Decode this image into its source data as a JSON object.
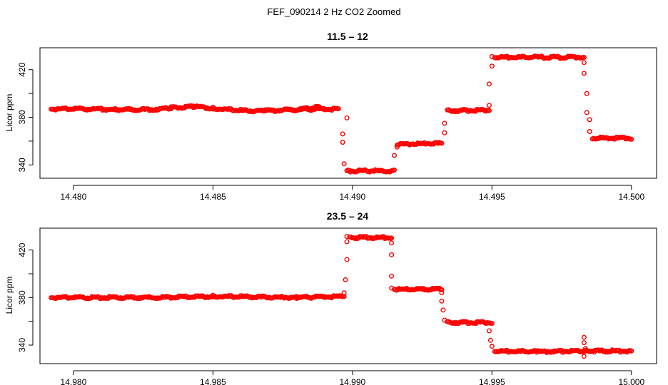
{
  "figure": {
    "title": "FEF_090214  2 Hz CO2 Zoomed"
  },
  "colors": {
    "points": "#ff0000",
    "axes": "#000000",
    "background": "#ffffff"
  },
  "chart_data": [
    {
      "type": "scatter",
      "title": "11.5 – 12",
      "xlabel": "",
      "ylabel": "Licor ppm",
      "xlim": [
        14.4788,
        14.5009
      ],
      "ylim": [
        328.8,
        438.4
      ],
      "x_ticks": [
        14.48,
        14.485,
        14.49,
        14.495,
        14.5
      ],
      "x_tick_labels": [
        "14.480",
        "14.485",
        "14.490",
        "14.495",
        "14.500"
      ],
      "y_ticks": [
        340,
        360,
        380,
        400,
        420
      ],
      "y_tick_labels": [
        "340",
        "",
        "380",
        "",
        "420"
      ],
      "marker": "open-circle",
      "series": [
        {
          "segments": [
            {
              "x": [
                14.4792,
                14.4805,
                14.4815,
                14.4828,
                14.4835,
                14.4843,
                14.485,
                14.4861,
                14.4868,
                14.488,
                14.4895
              ],
              "y": [
                386.5,
                386.5,
                386.0,
                386.0,
                387.5,
                388.5,
                387.0,
                385.0,
                385.0,
                386.0,
                386.5
              ]
            },
            {
              "x": [
                14.488,
                14.4888
              ],
              "y": [
                386.0,
                388.0
              ]
            },
            {
              "x": [
                14.4898
              ],
              "y": [
                379.5
              ]
            },
            {
              "x": [
                14.48965
              ],
              "y": [
                366.0
              ]
            },
            {
              "x": [
                14.48965
              ],
              "y": [
                359.0
              ]
            },
            {
              "x": [
                14.4897
              ],
              "y": [
                341.0
              ]
            },
            {
              "x": [
                14.4898,
                14.4915
              ],
              "y": [
                334.5,
                334.5
              ]
            },
            {
              "x": [
                14.4915
              ],
              "y": [
                348.0
              ]
            },
            {
              "x": [
                14.4916
              ],
              "y": [
                355.0
              ]
            },
            {
              "x": [
                14.4916,
                14.4932
              ],
              "y": [
                357.0,
                357.5
              ]
            },
            {
              "x": [
                14.4933
              ],
              "y": [
                367.0
              ]
            },
            {
              "x": [
                14.4933
              ],
              "y": [
                375.0
              ]
            },
            {
              "x": [
                14.4934,
                14.4949
              ],
              "y": [
                385.0,
                385.5
              ]
            },
            {
              "x": [
                14.4949
              ],
              "y": [
                390.0
              ]
            },
            {
              "x": [
                14.4949
              ],
              "y": [
                408.0
              ]
            },
            {
              "x": [
                14.495
              ],
              "y": [
                423.0
              ]
            },
            {
              "x": [
                14.495
              ],
              "y": [
                431.0
              ]
            },
            {
              "x": [
                14.4951,
                14.4983
              ],
              "y": [
                430.0,
                430.0
              ]
            },
            {
              "x": [
                14.4983
              ],
              "y": [
                426.0
              ]
            },
            {
              "x": [
                14.4983
              ],
              "y": [
                417.0
              ]
            },
            {
              "x": [
                14.4984
              ],
              "y": [
                400.0
              ]
            },
            {
              "x": [
                14.4984
              ],
              "y": [
                384.0
              ]
            },
            {
              "x": [
                14.4985
              ],
              "y": [
                378.0
              ]
            },
            {
              "x": [
                14.4985
              ],
              "y": [
                368.0
              ]
            },
            {
              "x": [
                14.4986,
                14.5
              ],
              "y": [
                362.0,
                362.0
              ]
            }
          ]
        }
      ]
    },
    {
      "type": "scatter",
      "title": "23.5 – 24",
      "xlabel": "",
      "ylabel": "Licor ppm",
      "xlim": [
        14.9788,
        15.0009
      ],
      "ylim": [
        324.4,
        438.4
      ],
      "x_ticks": [
        14.98,
        14.985,
        14.99,
        14.995,
        15.0
      ],
      "x_tick_labels": [
        "14.980",
        "14.985",
        "14.990",
        "14.995",
        "15.000"
      ],
      "y_ticks": [
        340,
        360,
        380,
        400,
        420
      ],
      "y_tick_labels": [
        "340",
        "",
        "380",
        "",
        "420"
      ],
      "marker": "open-circle",
      "series": [
        {
          "segments": [
            {
              "x": [
                14.9792,
                14.983,
                14.985,
                14.988,
                14.9897
              ],
              "y": [
                379.5,
                379.5,
                380.5,
                379.5,
                380.5
              ]
            },
            {
              "x": [
                14.9897
              ],
              "y": [
                384.0
              ]
            },
            {
              "x": [
                14.98975
              ],
              "y": [
                395.0
              ]
            },
            {
              "x": [
                14.9898
              ],
              "y": [
                412.0
              ]
            },
            {
              "x": [
                14.9898
              ],
              "y": [
                427.0
              ]
            },
            {
              "x": [
                14.9898
              ],
              "y": [
                431.5
              ]
            },
            {
              "x": [
                14.9899,
                14.9914
              ],
              "y": [
                430.0,
                430.0
              ]
            },
            {
              "x": [
                14.9914
              ],
              "y": [
                426.0
              ]
            },
            {
              "x": [
                14.9914
              ],
              "y": [
                416.0
              ]
            },
            {
              "x": [
                14.9914
              ],
              "y": [
                398.0
              ]
            },
            {
              "x": [
                14.9914
              ],
              "y": [
                388.0
              ]
            },
            {
              "x": [
                14.9915,
                14.9932
              ],
              "y": [
                386.5,
                386.5
              ]
            },
            {
              "x": [
                14.9932
              ],
              "y": [
                384.0
              ]
            },
            {
              "x": [
                14.9932
              ],
              "y": [
                377.0
              ]
            },
            {
              "x": [
                14.99325
              ],
              "y": [
                369.5
              ]
            },
            {
              "x": [
                14.9933
              ],
              "y": [
                361.0
              ]
            },
            {
              "x": [
                14.9934,
                14.995
              ],
              "y": [
                358.5,
                358.5
              ]
            },
            {
              "x": [
                14.9949
              ],
              "y": [
                352.0
              ]
            },
            {
              "x": [
                14.99495
              ],
              "y": [
                344.0
              ]
            },
            {
              "x": [
                14.995
              ],
              "y": [
                339.0
              ]
            },
            {
              "x": [
                14.9951,
                14.9966,
                14.9983,
                15.0
              ],
              "y": [
                334.5,
                334.0,
                334.5,
                334.5
              ]
            },
            {
              "x": [
                14.9983
              ],
              "y": [
                346.5
              ]
            },
            {
              "x": [
                14.9983
              ],
              "y": [
                342.0
              ]
            },
            {
              "x": [
                14.9983
              ],
              "y": [
                330.5
              ]
            },
            {
              "x": [
                14.99835
              ],
              "y": [
                337.0
              ]
            }
          ]
        }
      ]
    }
  ]
}
